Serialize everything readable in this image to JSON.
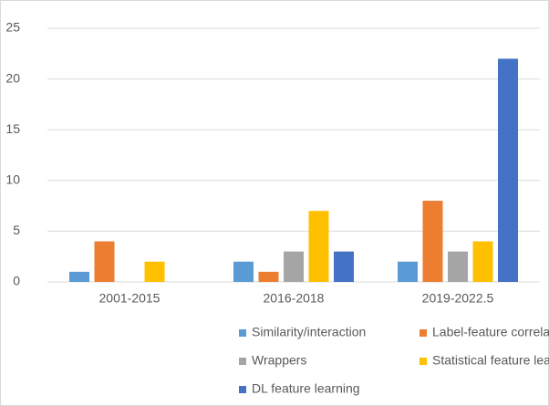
{
  "chart_data": {
    "type": "bar",
    "categories": [
      "2001-2015",
      "2016-2018",
      "2019-2022.5"
    ],
    "series": [
      {
        "name": "Similarity/interaction",
        "color": "#5b9bd5",
        "values": [
          1,
          2,
          2
        ]
      },
      {
        "name": "Label-feature correlation",
        "color": "#ed7d31",
        "values": [
          4,
          1,
          8
        ]
      },
      {
        "name": "Wrappers",
        "color": "#a5a5a5",
        "values": [
          0,
          3,
          3
        ]
      },
      {
        "name": "Statistical feature learning",
        "color": "#ffc000",
        "values": [
          2,
          7,
          4
        ]
      },
      {
        "name": "DL feature learning",
        "color": "#4472c4",
        "values": [
          0,
          3,
          22
        ]
      }
    ],
    "ylim": [
      0,
      25
    ],
    "yticks": [
      0,
      5,
      10,
      15,
      20,
      25
    ],
    "grid": true,
    "legend": "bottom"
  }
}
